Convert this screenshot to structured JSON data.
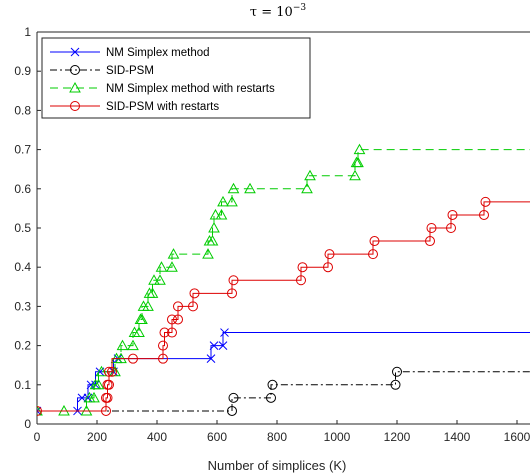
{
  "chart_data": {
    "type": "line",
    "title": "τ = 10",
    "title_exponent": "−3",
    "xlabel": "Number of simplices (K)",
    "ylabel": "",
    "xlim": [
      0,
      1600
    ],
    "ylim": [
      0,
      1
    ],
    "xticks": [
      0,
      200,
      400,
      600,
      800,
      1000,
      1200,
      1400,
      1600
    ],
    "yticks": [
      0,
      0.1,
      0.2,
      0.3,
      0.4,
      0.5,
      0.6,
      0.7,
      0.8,
      0.9,
      1
    ],
    "grid": false,
    "legend_position": "top-left",
    "series": [
      {
        "name": "NM Simplex method",
        "color": "#0000ff",
        "marker": "x",
        "linestyle": "solid",
        "steps": [
          [
            0,
            0.0333
          ],
          [
            135,
            0.0333
          ],
          [
            135,
            0.0667
          ],
          [
            170,
            0.0667
          ],
          [
            170,
            0.1
          ],
          [
            195,
            0.1
          ],
          [
            195,
            0.1333
          ],
          [
            255,
            0.1333
          ],
          [
            255,
            0.1667
          ],
          [
            580,
            0.1667
          ],
          [
            580,
            0.2
          ],
          [
            620,
            0.2
          ],
          [
            620,
            0.2333
          ],
          [
            1650,
            0.2333
          ]
        ],
        "markers": [
          [
            0,
            0.0333
          ],
          [
            135,
            0.0333
          ],
          [
            150,
            0.0667
          ],
          [
            170,
            0.0667
          ],
          [
            180,
            0.1
          ],
          [
            195,
            0.1
          ],
          [
            210,
            0.1333
          ],
          [
            255,
            0.1333
          ],
          [
            270,
            0.1667
          ],
          [
            580,
            0.1667
          ],
          [
            590,
            0.2
          ],
          [
            620,
            0.2
          ],
          [
            625,
            0.2333
          ]
        ]
      },
      {
        "name": "SID-PSM",
        "color": "#000000",
        "marker": "o",
        "linestyle": "dashdot",
        "steps": [
          [
            0,
            0.0333
          ],
          [
            650,
            0.0333
          ],
          [
            650,
            0.0667
          ],
          [
            780,
            0.0667
          ],
          [
            780,
            0.1
          ],
          [
            1195,
            0.1
          ],
          [
            1195,
            0.1333
          ],
          [
            1650,
            0.1333
          ]
        ],
        "markers": [
          [
            650,
            0.0333
          ],
          [
            655,
            0.0667
          ],
          [
            780,
            0.0667
          ],
          [
            785,
            0.1
          ],
          [
            1195,
            0.1
          ],
          [
            1200,
            0.1333
          ]
        ]
      },
      {
        "name": "NM Simplex method with restarts",
        "color": "#00cc00",
        "marker": "^",
        "linestyle": "dashed",
        "steps": [
          [
            0,
            0.0333
          ],
          [
            90,
            0.0333
          ],
          [
            165,
            0.0333
          ],
          [
            165,
            0.0667
          ],
          [
            190,
            0.0667
          ],
          [
            190,
            0.1
          ],
          [
            205,
            0.1
          ],
          [
            205,
            0.1333
          ],
          [
            260,
            0.1333
          ],
          [
            260,
            0.1667
          ],
          [
            280,
            0.1667
          ],
          [
            280,
            0.2
          ],
          [
            320,
            0.2
          ],
          [
            320,
            0.2333
          ],
          [
            340,
            0.2333
          ],
          [
            340,
            0.2667
          ],
          [
            350,
            0.2667
          ],
          [
            350,
            0.3
          ],
          [
            370,
            0.3
          ],
          [
            370,
            0.3333
          ],
          [
            385,
            0.3333
          ],
          [
            385,
            0.3667
          ],
          [
            410,
            0.3667
          ],
          [
            410,
            0.4
          ],
          [
            450,
            0.4
          ],
          [
            450,
            0.4333
          ],
          [
            570,
            0.4333
          ],
          [
            570,
            0.4667
          ],
          [
            585,
            0.4667
          ],
          [
            585,
            0.5
          ],
          [
            590,
            0.5
          ],
          [
            590,
            0.5333
          ],
          [
            615,
            0.5333
          ],
          [
            615,
            0.5667
          ],
          [
            650,
            0.5667
          ],
          [
            650,
            0.6
          ],
          [
            900,
            0.6
          ],
          [
            900,
            0.6333
          ],
          [
            1060,
            0.6333
          ],
          [
            1060,
            0.6667
          ],
          [
            1070,
            0.6667
          ],
          [
            1070,
            0.7
          ],
          [
            1650,
            0.7
          ]
        ],
        "markers": [
          [
            0,
            0.0333
          ],
          [
            90,
            0.0333
          ],
          [
            165,
            0.0333
          ],
          [
            175,
            0.0667
          ],
          [
            190,
            0.0667
          ],
          [
            195,
            0.1
          ],
          [
            205,
            0.1
          ],
          [
            215,
            0.1333
          ],
          [
            260,
            0.1333
          ],
          [
            265,
            0.1667
          ],
          [
            280,
            0.1667
          ],
          [
            285,
            0.2
          ],
          [
            320,
            0.2
          ],
          [
            325,
            0.2333
          ],
          [
            340,
            0.2333
          ],
          [
            345,
            0.2667
          ],
          [
            350,
            0.2667
          ],
          [
            355,
            0.3
          ],
          [
            370,
            0.3
          ],
          [
            375,
            0.3333
          ],
          [
            385,
            0.3333
          ],
          [
            390,
            0.3667
          ],
          [
            410,
            0.3667
          ],
          [
            415,
            0.4
          ],
          [
            450,
            0.4
          ],
          [
            455,
            0.4333
          ],
          [
            570,
            0.4333
          ],
          [
            575,
            0.4667
          ],
          [
            585,
            0.4667
          ],
          [
            590,
            0.5
          ],
          [
            595,
            0.5333
          ],
          [
            615,
            0.5333
          ],
          [
            620,
            0.5667
          ],
          [
            650,
            0.5667
          ],
          [
            655,
            0.6
          ],
          [
            710,
            0.6
          ],
          [
            900,
            0.6
          ],
          [
            910,
            0.6333
          ],
          [
            1060,
            0.6333
          ],
          [
            1065,
            0.6667
          ],
          [
            1070,
            0.6667
          ],
          [
            1075,
            0.7
          ]
        ]
      },
      {
        "name": "SID-PSM with restarts",
        "color": "#dd0000",
        "marker": "o",
        "linestyle": "solid",
        "steps": [
          [
            0,
            0.0333
          ],
          [
            230,
            0.0333
          ],
          [
            230,
            0.0667
          ],
          [
            235,
            0.0667
          ],
          [
            235,
            0.1
          ],
          [
            240,
            0.1
          ],
          [
            240,
            0.1333
          ],
          [
            250,
            0.1333
          ],
          [
            250,
            0.1667
          ],
          [
            420,
            0.1667
          ],
          [
            420,
            0.2
          ],
          [
            425,
            0.2
          ],
          [
            425,
            0.2333
          ],
          [
            450,
            0.2333
          ],
          [
            450,
            0.2667
          ],
          [
            470,
            0.2667
          ],
          [
            470,
            0.3
          ],
          [
            520,
            0.3
          ],
          [
            520,
            0.3333
          ],
          [
            650,
            0.3333
          ],
          [
            650,
            0.3667
          ],
          [
            880,
            0.3667
          ],
          [
            880,
            0.4
          ],
          [
            970,
            0.4
          ],
          [
            970,
            0.4333
          ],
          [
            1120,
            0.4333
          ],
          [
            1120,
            0.4667
          ],
          [
            1310,
            0.4667
          ],
          [
            1310,
            0.5
          ],
          [
            1380,
            0.5
          ],
          [
            1380,
            0.5333
          ],
          [
            1490,
            0.5333
          ],
          [
            1490,
            0.5667
          ],
          [
            1650,
            0.5667
          ]
        ],
        "markers": [
          [
            0,
            0.0333
          ],
          [
            230,
            0.0333
          ],
          [
            230,
            0.0667
          ],
          [
            235,
            0.0667
          ],
          [
            235,
            0.1
          ],
          [
            240,
            0.1
          ],
          [
            240,
            0.1333
          ],
          [
            250,
            0.1333
          ],
          [
            320,
            0.1667
          ],
          [
            420,
            0.1667
          ],
          [
            420,
            0.2
          ],
          [
            425,
            0.2333
          ],
          [
            450,
            0.2333
          ],
          [
            450,
            0.2667
          ],
          [
            470,
            0.2667
          ],
          [
            470,
            0.3
          ],
          [
            520,
            0.3
          ],
          [
            525,
            0.3333
          ],
          [
            650,
            0.3333
          ],
          [
            655,
            0.3667
          ],
          [
            880,
            0.3667
          ],
          [
            885,
            0.4
          ],
          [
            970,
            0.4
          ],
          [
            975,
            0.4333
          ],
          [
            1120,
            0.4333
          ],
          [
            1125,
            0.4667
          ],
          [
            1310,
            0.4667
          ],
          [
            1315,
            0.5
          ],
          [
            1380,
            0.5
          ],
          [
            1385,
            0.5333
          ],
          [
            1490,
            0.5333
          ],
          [
            1495,
            0.5667
          ]
        ]
      }
    ]
  }
}
